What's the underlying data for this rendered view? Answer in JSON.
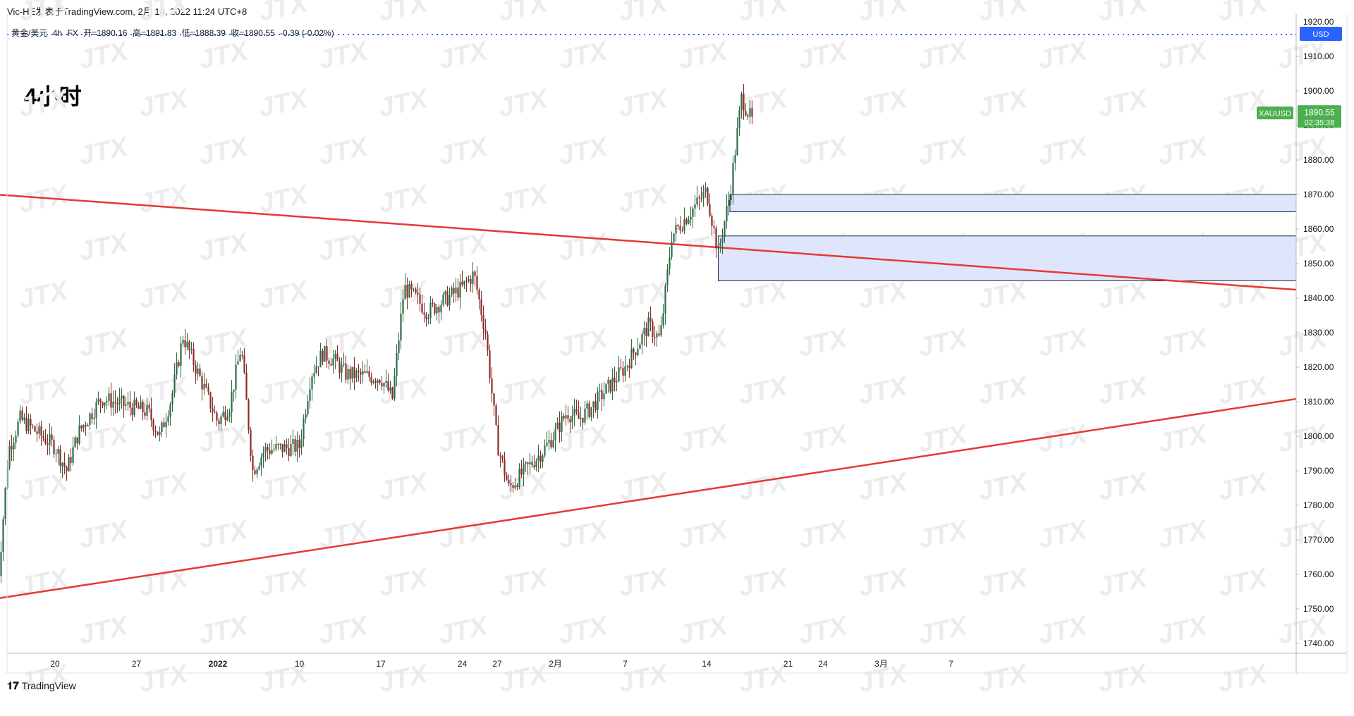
{
  "header": {
    "publisher": "Vic-HE发表于TradingView.com,",
    "datetime": "2月 18, 2022 11:24 UTC+8"
  },
  "symbol_info": {
    "name": "黄金/美元",
    "interval": "4h",
    "exchange": "FX",
    "open": "开=1890.16",
    "high": "高=1891.83",
    "low": "低=1888.39",
    "close": "收=1890.55",
    "change": "-0.39 (-0.02%)"
  },
  "timeframe_label": "4小时",
  "watermark_text": "JTX",
  "branding": "TradingView",
  "price_badge": {
    "symbol": "XAUUSD",
    "price": "1890.55",
    "countdown": "02:35:38",
    "color": "#4caf50"
  },
  "currency_badge": {
    "label": "USD",
    "color": "#2962ff"
  },
  "colors": {
    "up_candle": "#26a69a",
    "down_candle": "#ef5350",
    "up_candle_shown": "#2e6b45",
    "down_candle_shown": "#8b2a2a",
    "trendline": "#e53935",
    "zone_fill": "#dfe6fb",
    "zone_border": "#1f2a44",
    "price_line": "#2962ff"
  },
  "chart_data": {
    "type": "candlestick",
    "y_axis": {
      "min": 1735,
      "max": 1910,
      "ticks": [
        1740,
        1750,
        1760,
        1770,
        1780,
        1790,
        1800,
        1810,
        1820,
        1830,
        1840,
        1850,
        1860,
        1870,
        1880,
        1890,
        1900,
        1910
      ],
      "top_partial_label": "1920.00",
      "unit": "USD"
    },
    "x_axis": {
      "ticks": [
        {
          "label": "20",
          "date": "2021-12-20"
        },
        {
          "label": "27",
          "date": "2021-12-27"
        },
        {
          "label": "2022",
          "date": "2022-01-03",
          "bold": true
        },
        {
          "label": "10",
          "date": "2022-01-10"
        },
        {
          "label": "17",
          "date": "2022-01-17"
        },
        {
          "label": "24",
          "date": "2022-01-24"
        },
        {
          "label": "27",
          "date": "2022-01-27"
        },
        {
          "label": "2月",
          "date": "2022-02-01"
        },
        {
          "label": "7",
          "date": "2022-02-07"
        },
        {
          "label": "14",
          "date": "2022-02-14"
        },
        {
          "label": "21",
          "date": "2022-02-21"
        },
        {
          "label": "24",
          "date": "2022-02-24"
        },
        {
          "label": "3月",
          "date": "2022-03-01"
        },
        {
          "label": "7",
          "date": "2022-03-07"
        }
      ]
    },
    "waypoints": [
      {
        "date": "2021-12-15",
        "price": 1753
      },
      {
        "date": "2021-12-16",
        "price": 1796
      },
      {
        "date": "2021-12-17",
        "price": 1805
      },
      {
        "date": "2021-12-20",
        "price": 1797
      },
      {
        "date": "2021-12-21",
        "price": 1790
      },
      {
        "date": "2021-12-22",
        "price": 1801
      },
      {
        "date": "2021-12-23",
        "price": 1806
      },
      {
        "date": "2021-12-24",
        "price": 1811
      },
      {
        "date": "2021-12-28",
        "price": 1807
      },
      {
        "date": "2021-12-29",
        "price": 1800
      },
      {
        "date": "2021-12-30",
        "price": 1811
      },
      {
        "date": "2021-12-31",
        "price": 1829
      },
      {
        "date": "2022-01-03",
        "price": 1804
      },
      {
        "date": "2022-01-04",
        "price": 1809
      },
      {
        "date": "2022-01-05",
        "price": 1826
      },
      {
        "date": "2022-01-06",
        "price": 1790
      },
      {
        "date": "2022-01-07",
        "price": 1796
      },
      {
        "date": "2022-01-10",
        "price": 1797
      },
      {
        "date": "2022-01-11",
        "price": 1818
      },
      {
        "date": "2022-01-12",
        "price": 1824
      },
      {
        "date": "2022-01-13",
        "price": 1822
      },
      {
        "date": "2022-01-14",
        "price": 1818
      },
      {
        "date": "2022-01-17",
        "price": 1817
      },
      {
        "date": "2022-01-18",
        "price": 1811
      },
      {
        "date": "2022-01-19",
        "price": 1843
      },
      {
        "date": "2022-01-20",
        "price": 1840
      },
      {
        "date": "2022-01-21",
        "price": 1836
      },
      {
        "date": "2022-01-24",
        "price": 1843
      },
      {
        "date": "2022-01-25",
        "price": 1847
      },
      {
        "date": "2022-01-26",
        "price": 1830
      },
      {
        "date": "2022-01-27",
        "price": 1798
      },
      {
        "date": "2022-01-28",
        "price": 1785
      },
      {
        "date": "2022-01-31",
        "price": 1796
      },
      {
        "date": "2022-02-01",
        "price": 1801
      },
      {
        "date": "2022-02-02",
        "price": 1807
      },
      {
        "date": "2022-02-03",
        "price": 1805
      },
      {
        "date": "2022-02-04",
        "price": 1808
      },
      {
        "date": "2022-02-07",
        "price": 1820
      },
      {
        "date": "2022-02-08",
        "price": 1826
      },
      {
        "date": "2022-02-09",
        "price": 1832
      },
      {
        "date": "2022-02-10",
        "price": 1828
      },
      {
        "date": "2022-02-11",
        "price": 1858
      },
      {
        "date": "2022-02-14",
        "price": 1871
      },
      {
        "date": "2022-02-15",
        "price": 1853
      },
      {
        "date": "2022-02-16",
        "price": 1870
      },
      {
        "date": "2022-02-17",
        "price": 1898
      },
      {
        "date": "2022-02-18",
        "price": 1890.55
      }
    ],
    "trendlines": [
      {
        "name": "upper",
        "from": {
          "date": "2021-12-15",
          "price": 1870
        },
        "to": {
          "date": "2022-03-10",
          "price": 1849
        }
      },
      {
        "name": "lower",
        "from": {
          "date": "2021-12-15",
          "price": 1753
        },
        "to": {
          "date": "2022-03-10",
          "price": 1797
        }
      }
    ],
    "zones": [
      {
        "name": "upper-zone",
        "from_date": "2022-02-16",
        "price_low": 1865,
        "price_high": 1870
      },
      {
        "name": "lower-zone",
        "from_date": "2022-02-15",
        "price_low": 1845,
        "price_high": 1858
      }
    ],
    "last_price": 1890.55
  }
}
